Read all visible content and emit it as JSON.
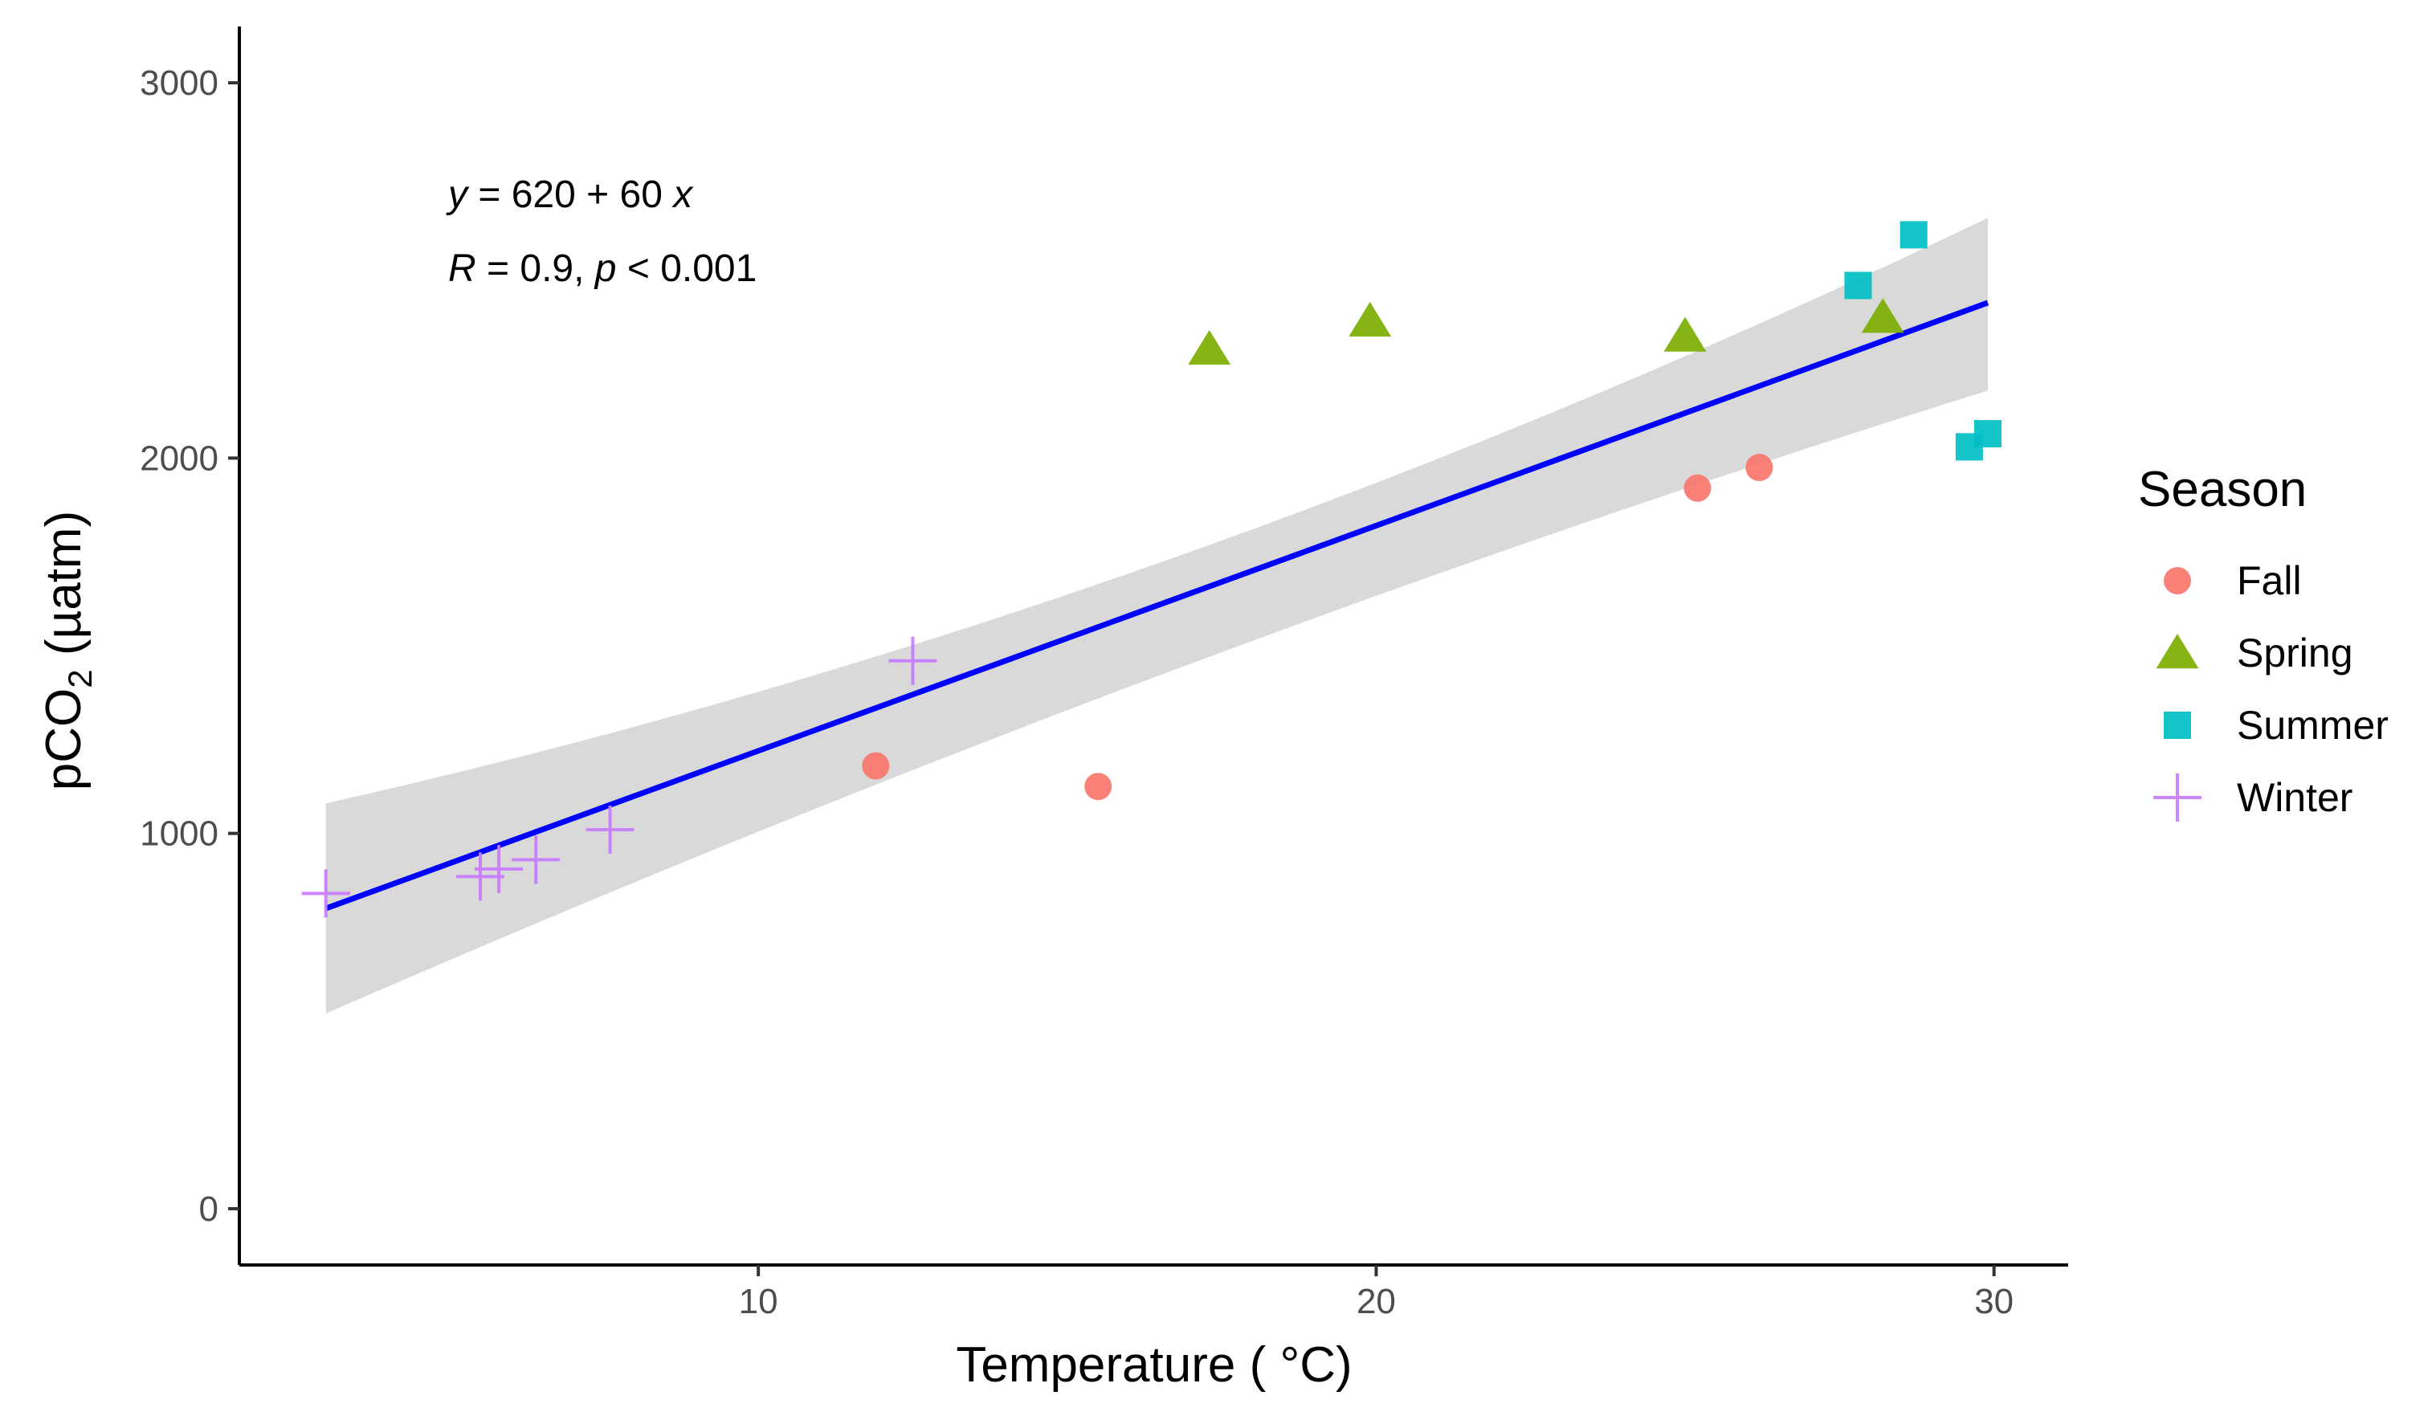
{
  "chart_data": {
    "type": "scatter",
    "title": "",
    "xlabel": "Temperature ( °C)",
    "ylabel_main": "pCO",
    "ylabel_sub": "2",
    "ylabel_unit": " (µatm)",
    "xlim": [
      1.6,
      31.2
    ],
    "ylim": [
      -150,
      3150
    ],
    "xticks": [
      10,
      20,
      30
    ],
    "yticks": [
      0,
      1000,
      2000,
      3000
    ],
    "grid": false,
    "legend": {
      "title": "Season",
      "position": "right",
      "entries": [
        {
          "name": "Fall",
          "shape": "circle",
          "color": "#F8766D"
        },
        {
          "name": "Spring",
          "shape": "triangle",
          "color": "#7CAE00"
        },
        {
          "name": "Summer",
          "shape": "square",
          "color": "#00BFC4"
        },
        {
          "name": "Winter",
          "shape": "cross",
          "color": "#C77CFF"
        }
      ]
    },
    "series": [
      {
        "name": "Fall",
        "points": [
          [
            11.9,
            1180
          ],
          [
            15.5,
            1125
          ],
          [
            25.2,
            1920
          ],
          [
            26.2,
            1975
          ]
        ]
      },
      {
        "name": "Spring",
        "points": [
          [
            17.3,
            2290
          ],
          [
            19.9,
            2365
          ],
          [
            25.0,
            2325
          ],
          [
            28.2,
            2375
          ]
        ]
      },
      {
        "name": "Summer",
        "points": [
          [
            27.8,
            2460
          ],
          [
            28.7,
            2595
          ],
          [
            29.6,
            2030
          ],
          [
            29.9,
            2065
          ]
        ]
      },
      {
        "name": "Winter",
        "points": [
          [
            3.0,
            840
          ],
          [
            5.5,
            885
          ],
          [
            5.8,
            905
          ],
          [
            6.4,
            930
          ],
          [
            7.6,
            1010
          ],
          [
            12.5,
            1460
          ]
        ]
      }
    ],
    "regression": {
      "intercept": 620,
      "slope": 60,
      "x_range": [
        3.0,
        29.9
      ],
      "line_color": "#0000FF",
      "band_color": "#D9D9D9",
      "band": [
        {
          "x": 3.0,
          "lower": 520,
          "upper": 1080
        },
        {
          "x": 16.5,
          "lower": 1420,
          "upper": 1720
        },
        {
          "x": 29.9,
          "lower": 2180,
          "upper": 2640
        }
      ]
    },
    "annotation": {
      "line1_y": "y",
      "line1_rest": " = 620 + 60 ",
      "line1_x": "x",
      "line2_r": "R",
      "line2_mid": " = 0.9, ",
      "line2_p": "p",
      "line2_rest": " < 0.001"
    }
  }
}
